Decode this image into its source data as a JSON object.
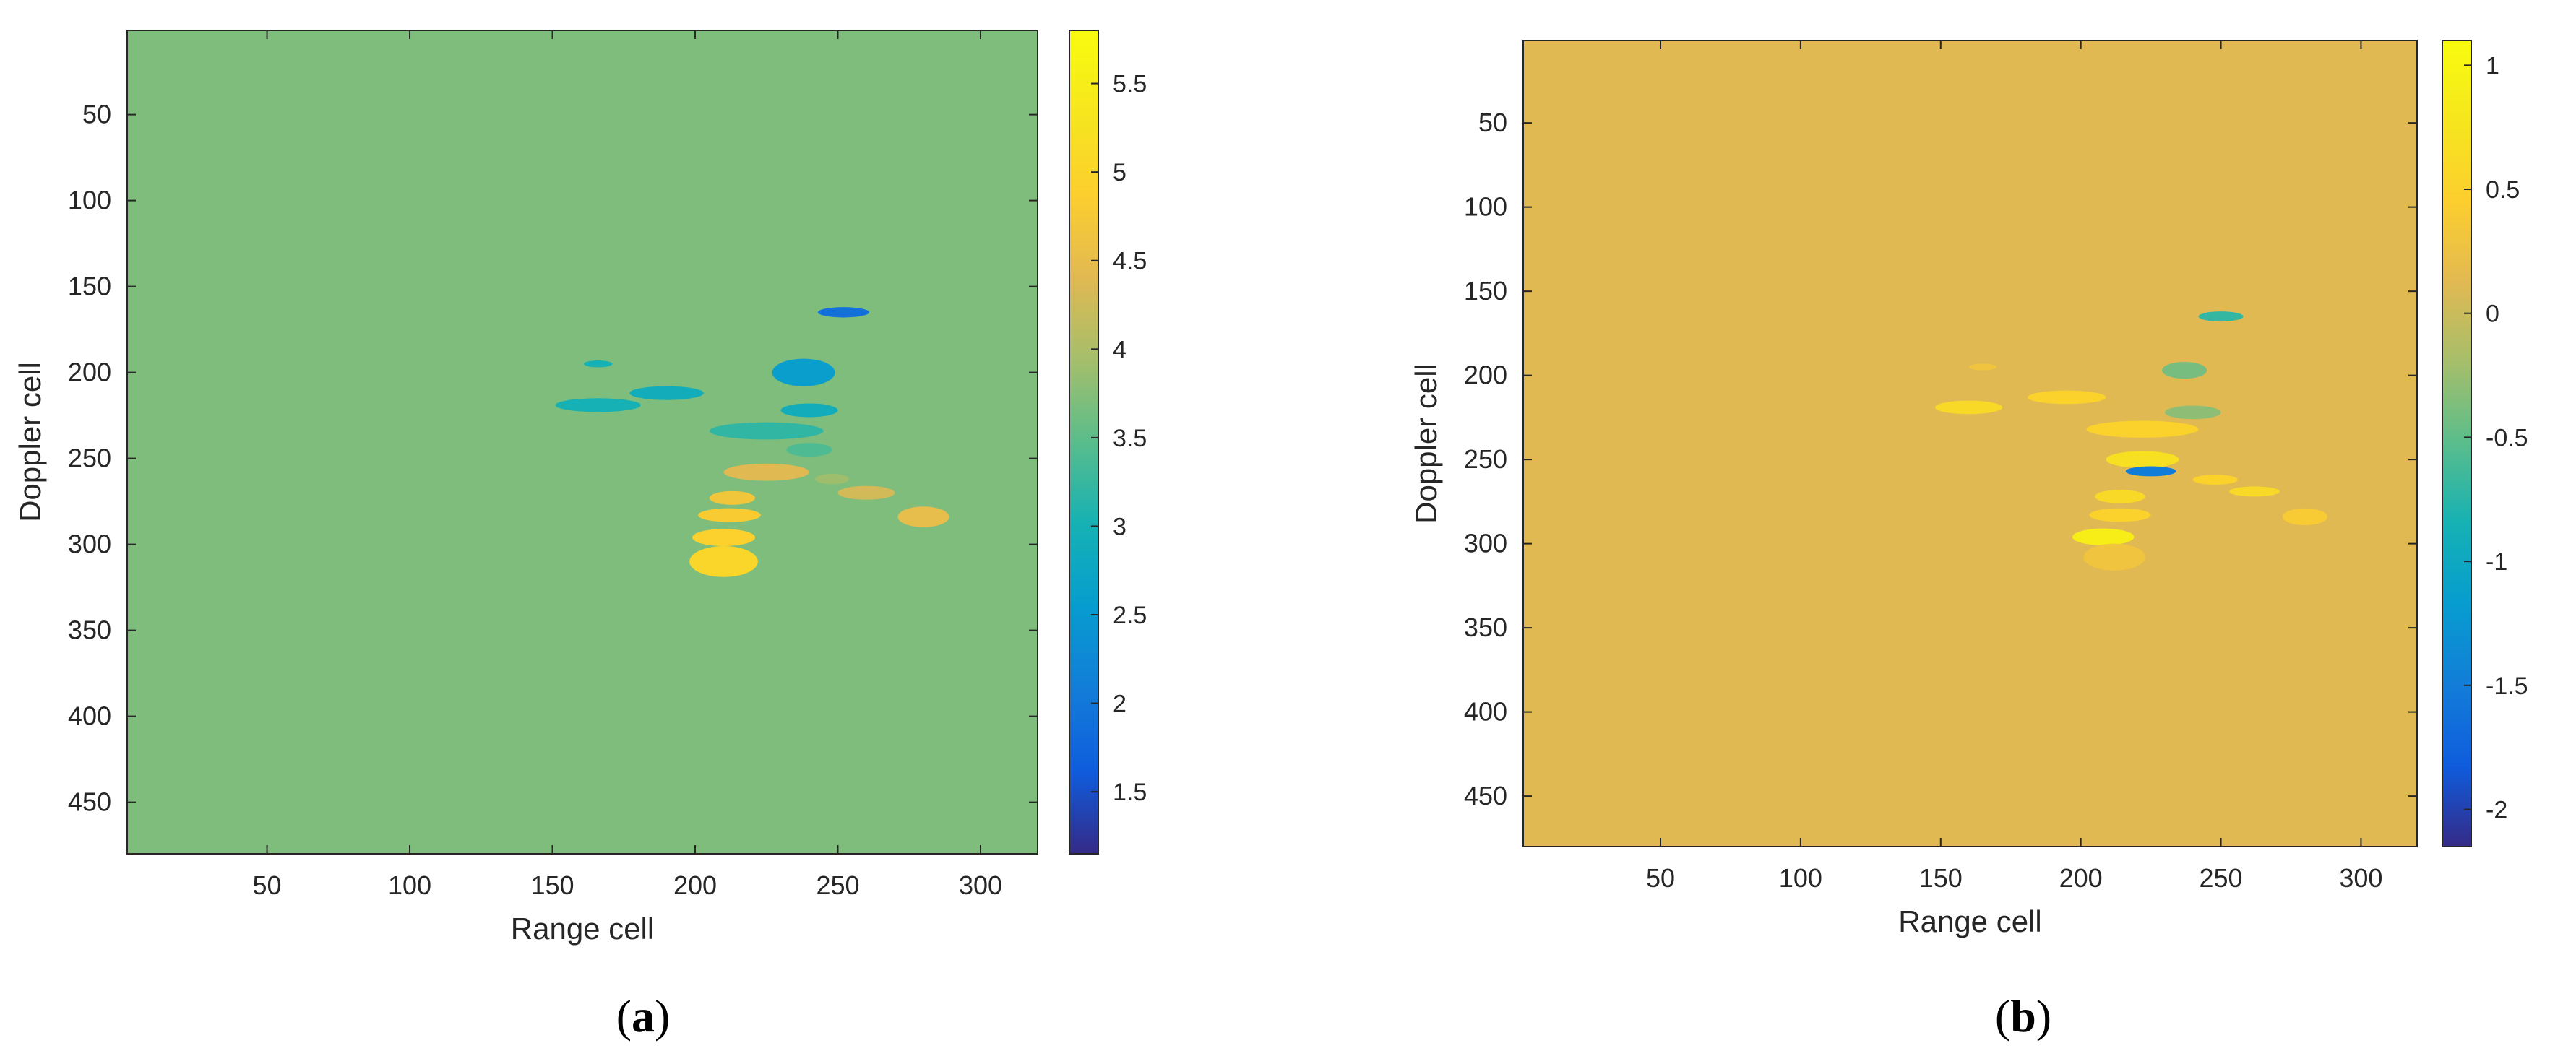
{
  "chart_data": [
    {
      "type": "heatmap",
      "panel_label": "a",
      "xlabel": "Range cell",
      "ylabel": "Doppler cell",
      "xlim": [
        1,
        320
      ],
      "ylim": [
        1,
        480
      ],
      "xticks": [
        50,
        100,
        150,
        200,
        250,
        300
      ],
      "yticks": [
        50,
        100,
        150,
        200,
        250,
        300,
        350,
        400,
        450
      ],
      "y_reversed": true,
      "background_value": 3.7,
      "colorbar": {
        "colormap": "parula",
        "clim": [
          1.15,
          5.8
        ],
        "ticks": [
          1.5,
          2,
          2.5,
          3,
          3.5,
          4,
          4.5,
          5,
          5.5
        ]
      },
      "blobs": [
        {
          "x": 252,
          "y": 165,
          "rx": 9,
          "ry": 3,
          "value": 1.9
        },
        {
          "x": 238,
          "y": 200,
          "rx": 11,
          "ry": 8,
          "value": 2.6
        },
        {
          "x": 166,
          "y": 195,
          "rx": 5,
          "ry": 2,
          "value": 3.0
        },
        {
          "x": 166,
          "y": 219,
          "rx": 15,
          "ry": 4,
          "value": 3.0
        },
        {
          "x": 190,
          "y": 212,
          "rx": 13,
          "ry": 4,
          "value": 2.9
        },
        {
          "x": 240,
          "y": 222,
          "rx": 10,
          "ry": 4,
          "value": 2.9
        },
        {
          "x": 225,
          "y": 234,
          "rx": 20,
          "ry": 5,
          "value": 3.2
        },
        {
          "x": 240,
          "y": 245,
          "rx": 8,
          "ry": 4,
          "value": 3.4
        },
        {
          "x": 225,
          "y": 258,
          "rx": 15,
          "ry": 5,
          "value": 4.4
        },
        {
          "x": 248,
          "y": 262,
          "rx": 6,
          "ry": 3,
          "value": 3.9
        },
        {
          "x": 260,
          "y": 270,
          "rx": 10,
          "ry": 4,
          "value": 4.3
        },
        {
          "x": 280,
          "y": 284,
          "rx": 9,
          "ry": 6,
          "value": 4.5
        },
        {
          "x": 213,
          "y": 273,
          "rx": 8,
          "ry": 4,
          "value": 4.7
        },
        {
          "x": 212,
          "y": 283,
          "rx": 11,
          "ry": 4,
          "value": 4.8
        },
        {
          "x": 210,
          "y": 296,
          "rx": 11,
          "ry": 5,
          "value": 4.9
        },
        {
          "x": 210,
          "y": 310,
          "rx": 12,
          "ry": 9,
          "value": 5.0
        }
      ]
    },
    {
      "type": "heatmap",
      "panel_label": "b",
      "xlabel": "Range cell",
      "ylabel": "Doppler cell",
      "xlim": [
        1,
        320
      ],
      "ylim": [
        1,
        480
      ],
      "xticks": [
        50,
        100,
        150,
        200,
        250,
        300
      ],
      "yticks": [
        50,
        100,
        150,
        200,
        250,
        300,
        350,
        400,
        450
      ],
      "y_reversed": true,
      "background_value": 0.12,
      "colorbar": {
        "colormap": "parula",
        "clim": [
          -2.15,
          1.1
        ],
        "ticks": [
          -2,
          -1.5,
          -1,
          -0.5,
          0,
          0.5,
          1
        ]
      },
      "blobs": [
        {
          "x": 250,
          "y": 165,
          "rx": 8,
          "ry": 3,
          "value": -0.7
        },
        {
          "x": 237,
          "y": 197,
          "rx": 8,
          "ry": 5,
          "value": -0.4
        },
        {
          "x": 165,
          "y": 195,
          "rx": 5,
          "ry": 2,
          "value": 0.3
        },
        {
          "x": 160,
          "y": 219,
          "rx": 12,
          "ry": 4,
          "value": 0.6
        },
        {
          "x": 195,
          "y": 213,
          "rx": 14,
          "ry": 4,
          "value": 0.5
        },
        {
          "x": 240,
          "y": 222,
          "rx": 10,
          "ry": 4,
          "value": -0.3
        },
        {
          "x": 222,
          "y": 232,
          "rx": 20,
          "ry": 5,
          "value": 0.5
        },
        {
          "x": 222,
          "y": 250,
          "rx": 13,
          "ry": 5,
          "value": 0.7
        },
        {
          "x": 225,
          "y": 257,
          "rx": 9,
          "ry": 3,
          "value": -1.5
        },
        {
          "x": 248,
          "y": 262,
          "rx": 8,
          "ry": 3,
          "value": 0.5
        },
        {
          "x": 262,
          "y": 269,
          "rx": 9,
          "ry": 3,
          "value": 0.6
        },
        {
          "x": 280,
          "y": 284,
          "rx": 8,
          "ry": 5,
          "value": 0.4
        },
        {
          "x": 214,
          "y": 272,
          "rx": 9,
          "ry": 4,
          "value": 0.6
        },
        {
          "x": 214,
          "y": 283,
          "rx": 11,
          "ry": 4,
          "value": 0.5
        },
        {
          "x": 208,
          "y": 296,
          "rx": 11,
          "ry": 5,
          "value": 0.9
        },
        {
          "x": 212,
          "y": 308,
          "rx": 11,
          "ry": 8,
          "value": 0.3
        }
      ]
    }
  ]
}
